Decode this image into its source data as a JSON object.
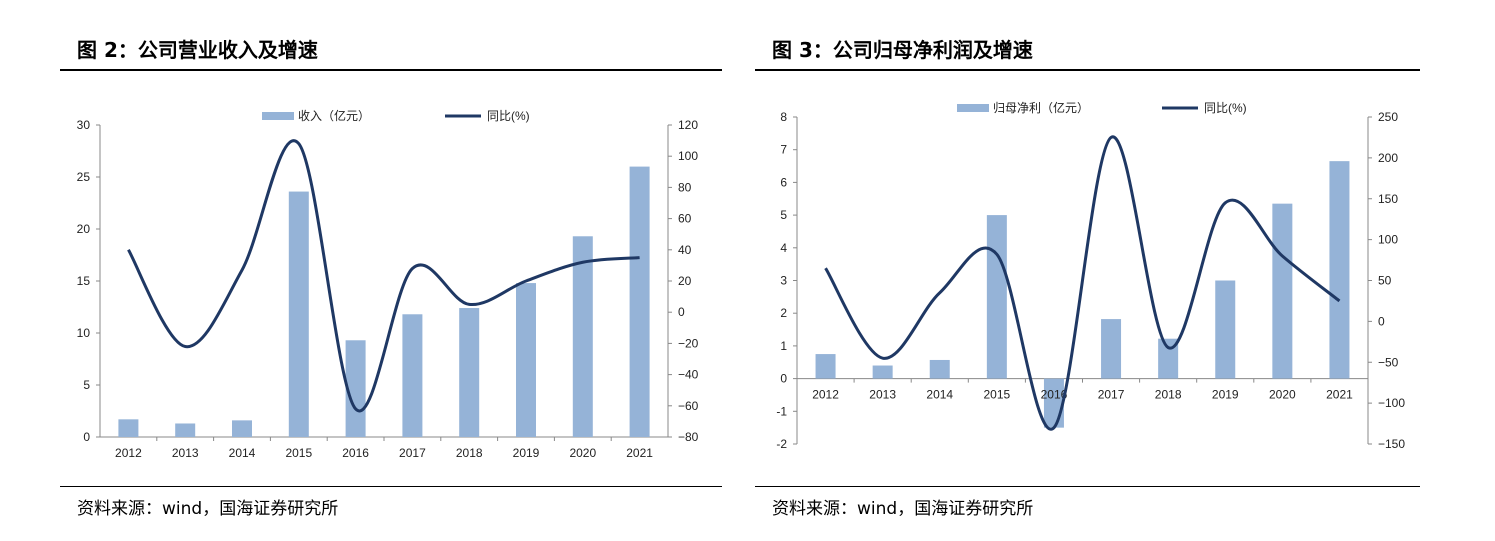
{
  "charts_meta": [
    {
      "title": "图 2：公司营业收入及增速",
      "source": "资料来源：wind，国海证券研究所"
    },
    {
      "title": "图 3：公司归母净利润及增速",
      "source": "资料来源：wind，国海证券研究所"
    }
  ],
  "chart_data": [
    {
      "type": "bar+line",
      "title": "图 2：公司营业收入及增速",
      "categories": [
        "2012",
        "2013",
        "2014",
        "2015",
        "2016",
        "2017",
        "2018",
        "2019",
        "2020",
        "2021"
      ],
      "series": [
        {
          "name": "收入（亿元）",
          "type": "bar",
          "axis": "left",
          "values": [
            1.7,
            1.3,
            1.6,
            23.6,
            9.3,
            11.8,
            12.4,
            14.8,
            19.3,
            26.0
          ]
        },
        {
          "name": "同比(%)",
          "type": "line",
          "axis": "right",
          "values": [
            40,
            -22,
            27,
            108,
            -62,
            28,
            5,
            20,
            32,
            35
          ]
        }
      ],
      "ylim": [
        0,
        30
      ],
      "yticks": [
        0,
        5,
        10,
        15,
        20,
        25,
        30
      ],
      "y2lim": [
        -80,
        120
      ],
      "y2ticks": [
        -80,
        -60,
        -40,
        -20,
        0,
        20,
        40,
        60,
        80,
        100,
        120
      ],
      "legend": "top",
      "grid": false,
      "colors": {
        "bar": "#95b3d7",
        "line": "#1f3864"
      }
    },
    {
      "type": "bar+line",
      "title": "图 3：公司归母净利润及增速",
      "categories": [
        "2012",
        "2013",
        "2014",
        "2015",
        "2016",
        "2017",
        "2018",
        "2019",
        "2020",
        "2021"
      ],
      "series": [
        {
          "name": "归母净利（亿元）",
          "type": "bar",
          "axis": "left",
          "values": [
            0.75,
            0.4,
            0.57,
            5.0,
            -1.5,
            1.82,
            1.22,
            3.0,
            5.35,
            6.65
          ]
        },
        {
          "name": "同比(%)",
          "type": "line",
          "axis": "right",
          "values": [
            65,
            -45,
            35,
            82,
            -130,
            225,
            -32,
            145,
            80,
            25
          ]
        }
      ],
      "ylim": [
        -2,
        8
      ],
      "yticks": [
        -2,
        -1,
        0,
        1,
        2,
        3,
        4,
        5,
        6,
        7,
        8
      ],
      "y2lim": [
        -150,
        250
      ],
      "y2ticks": [
        -150,
        -100,
        -50,
        0,
        50,
        100,
        150,
        200,
        250
      ],
      "legend": "top",
      "grid": false,
      "colors": {
        "bar": "#95b3d7",
        "line": "#1f3864"
      }
    }
  ]
}
